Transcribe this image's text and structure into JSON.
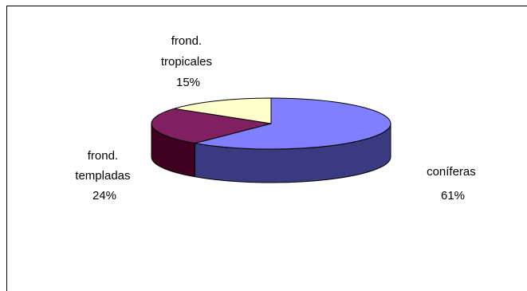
{
  "chart_data": {
    "type": "pie",
    "title": "",
    "three_d": true,
    "slices": [
      {
        "label_lines": [
          "coníferas",
          "61%"
        ],
        "value": 61,
        "color": "#8080ff",
        "side_color": "#3a3a80"
      },
      {
        "label_lines": [
          "frond.",
          "templadas",
          "24%"
        ],
        "value": 24,
        "color": "#802060",
        "side_color": "#400020"
      },
      {
        "label_lines": [
          "frond.",
          "tropicales",
          "15%"
        ],
        "value": 15,
        "color": "#ffffcc",
        "side_color": "#808060"
      }
    ]
  }
}
